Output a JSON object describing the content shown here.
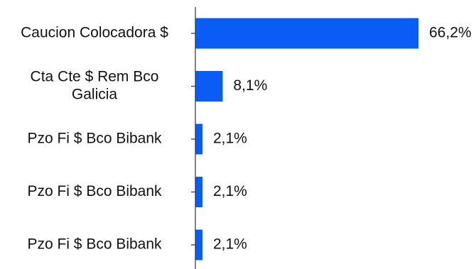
{
  "chart_data": {
    "type": "bar",
    "orientation": "horizontal",
    "categories": [
      [
        "Caucion Colocadora $"
      ],
      [
        "Cta Cte $ Rem Bco",
        "Galicia"
      ],
      [
        "Pzo Fi $ Bco Bibank"
      ],
      [
        "Pzo Fi $ Bco Bibank"
      ],
      [
        "Pzo Fi $ Bco Bibank"
      ]
    ],
    "values": [
      66.2,
      8.1,
      2.1,
      2.1,
      2.1
    ],
    "value_labels": [
      "66,2%",
      "8,1%",
      "2,1%",
      "2,1%",
      "2,1%"
    ],
    "xlim": [
      0,
      66.2
    ],
    "bar_color": "#0a5cf5",
    "axis_color": "#333333",
    "grid": false,
    "legend": "none"
  }
}
